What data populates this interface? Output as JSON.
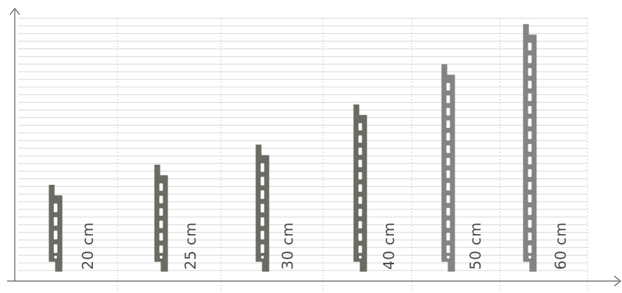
{
  "chart_data": {
    "type": "bar",
    "categories": [
      "20 cm",
      "25 cm",
      "30 cm",
      "40 cm",
      "50 cm",
      "60 cm"
    ],
    "values": [
      20,
      25,
      30,
      40,
      50,
      60
    ],
    "title": "",
    "xlabel": "",
    "ylabel": "",
    "ylim": [
      0,
      60
    ],
    "grid": true,
    "colors": {
      "dark_profile": "#6b6b64",
      "light_profile": "#848486",
      "grid_line": "#d6d6d6",
      "axis": "#555555",
      "label": "#4a4a4a"
    }
  }
}
